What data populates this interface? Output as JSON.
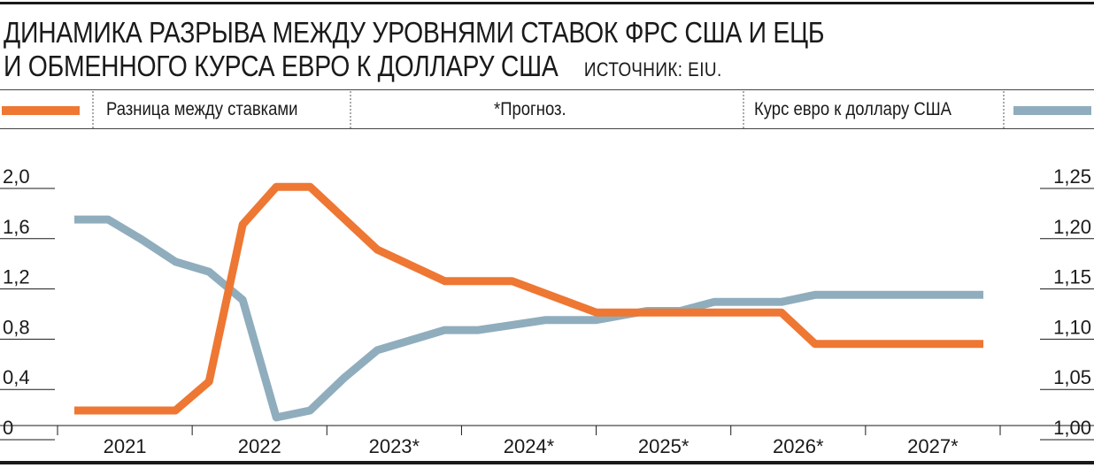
{
  "header": {
    "title_line1": "ДИНАМИКА РАЗРЫВА МЕЖДУ УРОВНЯМИ СТАВОК ФРС США И ЕЦБ",
    "title_line2": "И ОБМЕННОГО КУРСА ЕВРО К ДОЛЛАРУ США",
    "source": "ИСТОЧНИК: EIU."
  },
  "legend": {
    "left_series": "Разница между ставками",
    "forecast_note": "*Прогноз.",
    "right_series": "Курс евро к доллару США"
  },
  "colors": {
    "rate_gap": "#ee7733",
    "eur_usd": "#8fadbd",
    "ink": "#1a1a1a"
  },
  "chart_data": {
    "type": "line",
    "title": "ДИНАМИКА РАЗРЫВА МЕЖДУ УРОВНЯМИ СТАВОК ФРС США И ЕЦБ И ОБМЕННОГО КУРСА ЕВРО К ДОЛЛАРУ США",
    "categories": [
      "2021",
      "2022",
      "2023*",
      "2024*",
      "2025*",
      "2026*",
      "2027*"
    ],
    "left_axis": {
      "ticks": [
        "0",
        "0,4",
        "0,8",
        "1,2",
        "1,6",
        "2,0"
      ],
      "ylim": [
        0,
        2.0
      ]
    },
    "right_axis": {
      "ticks": [
        "1,00",
        "1,05",
        "1,10",
        "1,15",
        "1,20",
        "1,25"
      ],
      "ylim": [
        1.0,
        1.25
      ]
    },
    "grid": false,
    "series": [
      {
        "name": "Разница между ставками",
        "axis": "left",
        "x": [
          2021.125,
          2021.375,
          2021.625,
          2021.875,
          2022.125,
          2022.375,
          2022.625,
          2022.875,
          2023.375,
          2023.875,
          2024.125,
          2024.375,
          2025.0,
          2025.875,
          2026.125,
          2026.375,
          2026.625,
          2027.0,
          2027.875
        ],
        "values": [
          0.12,
          0.12,
          0.12,
          0.12,
          0.35,
          1.6,
          1.9,
          1.9,
          1.4,
          1.15,
          1.15,
          1.15,
          0.9,
          0.9,
          0.9,
          0.9,
          0.65,
          0.65,
          0.65
        ]
      },
      {
        "name": "Курс евро к доллару США",
        "axis": "right",
        "x": [
          2021.125,
          2021.375,
          2021.625,
          2021.875,
          2022.125,
          2022.375,
          2022.625,
          2022.875,
          2023.125,
          2023.375,
          2023.875,
          2024.125,
          2024.375,
          2024.625,
          2025.0,
          2025.375,
          2025.625,
          2025.875,
          2026.125,
          2026.375,
          2026.625,
          2027.0,
          2027.875
        ],
        "values": [
          1.205,
          1.205,
          1.185,
          1.163,
          1.153,
          1.125,
          1.008,
          1.015,
          1.047,
          1.075,
          1.095,
          1.095,
          1.1,
          1.105,
          1.105,
          1.114,
          1.114,
          1.123,
          1.123,
          1.123,
          1.13,
          1.13,
          1.13
        ]
      }
    ]
  }
}
